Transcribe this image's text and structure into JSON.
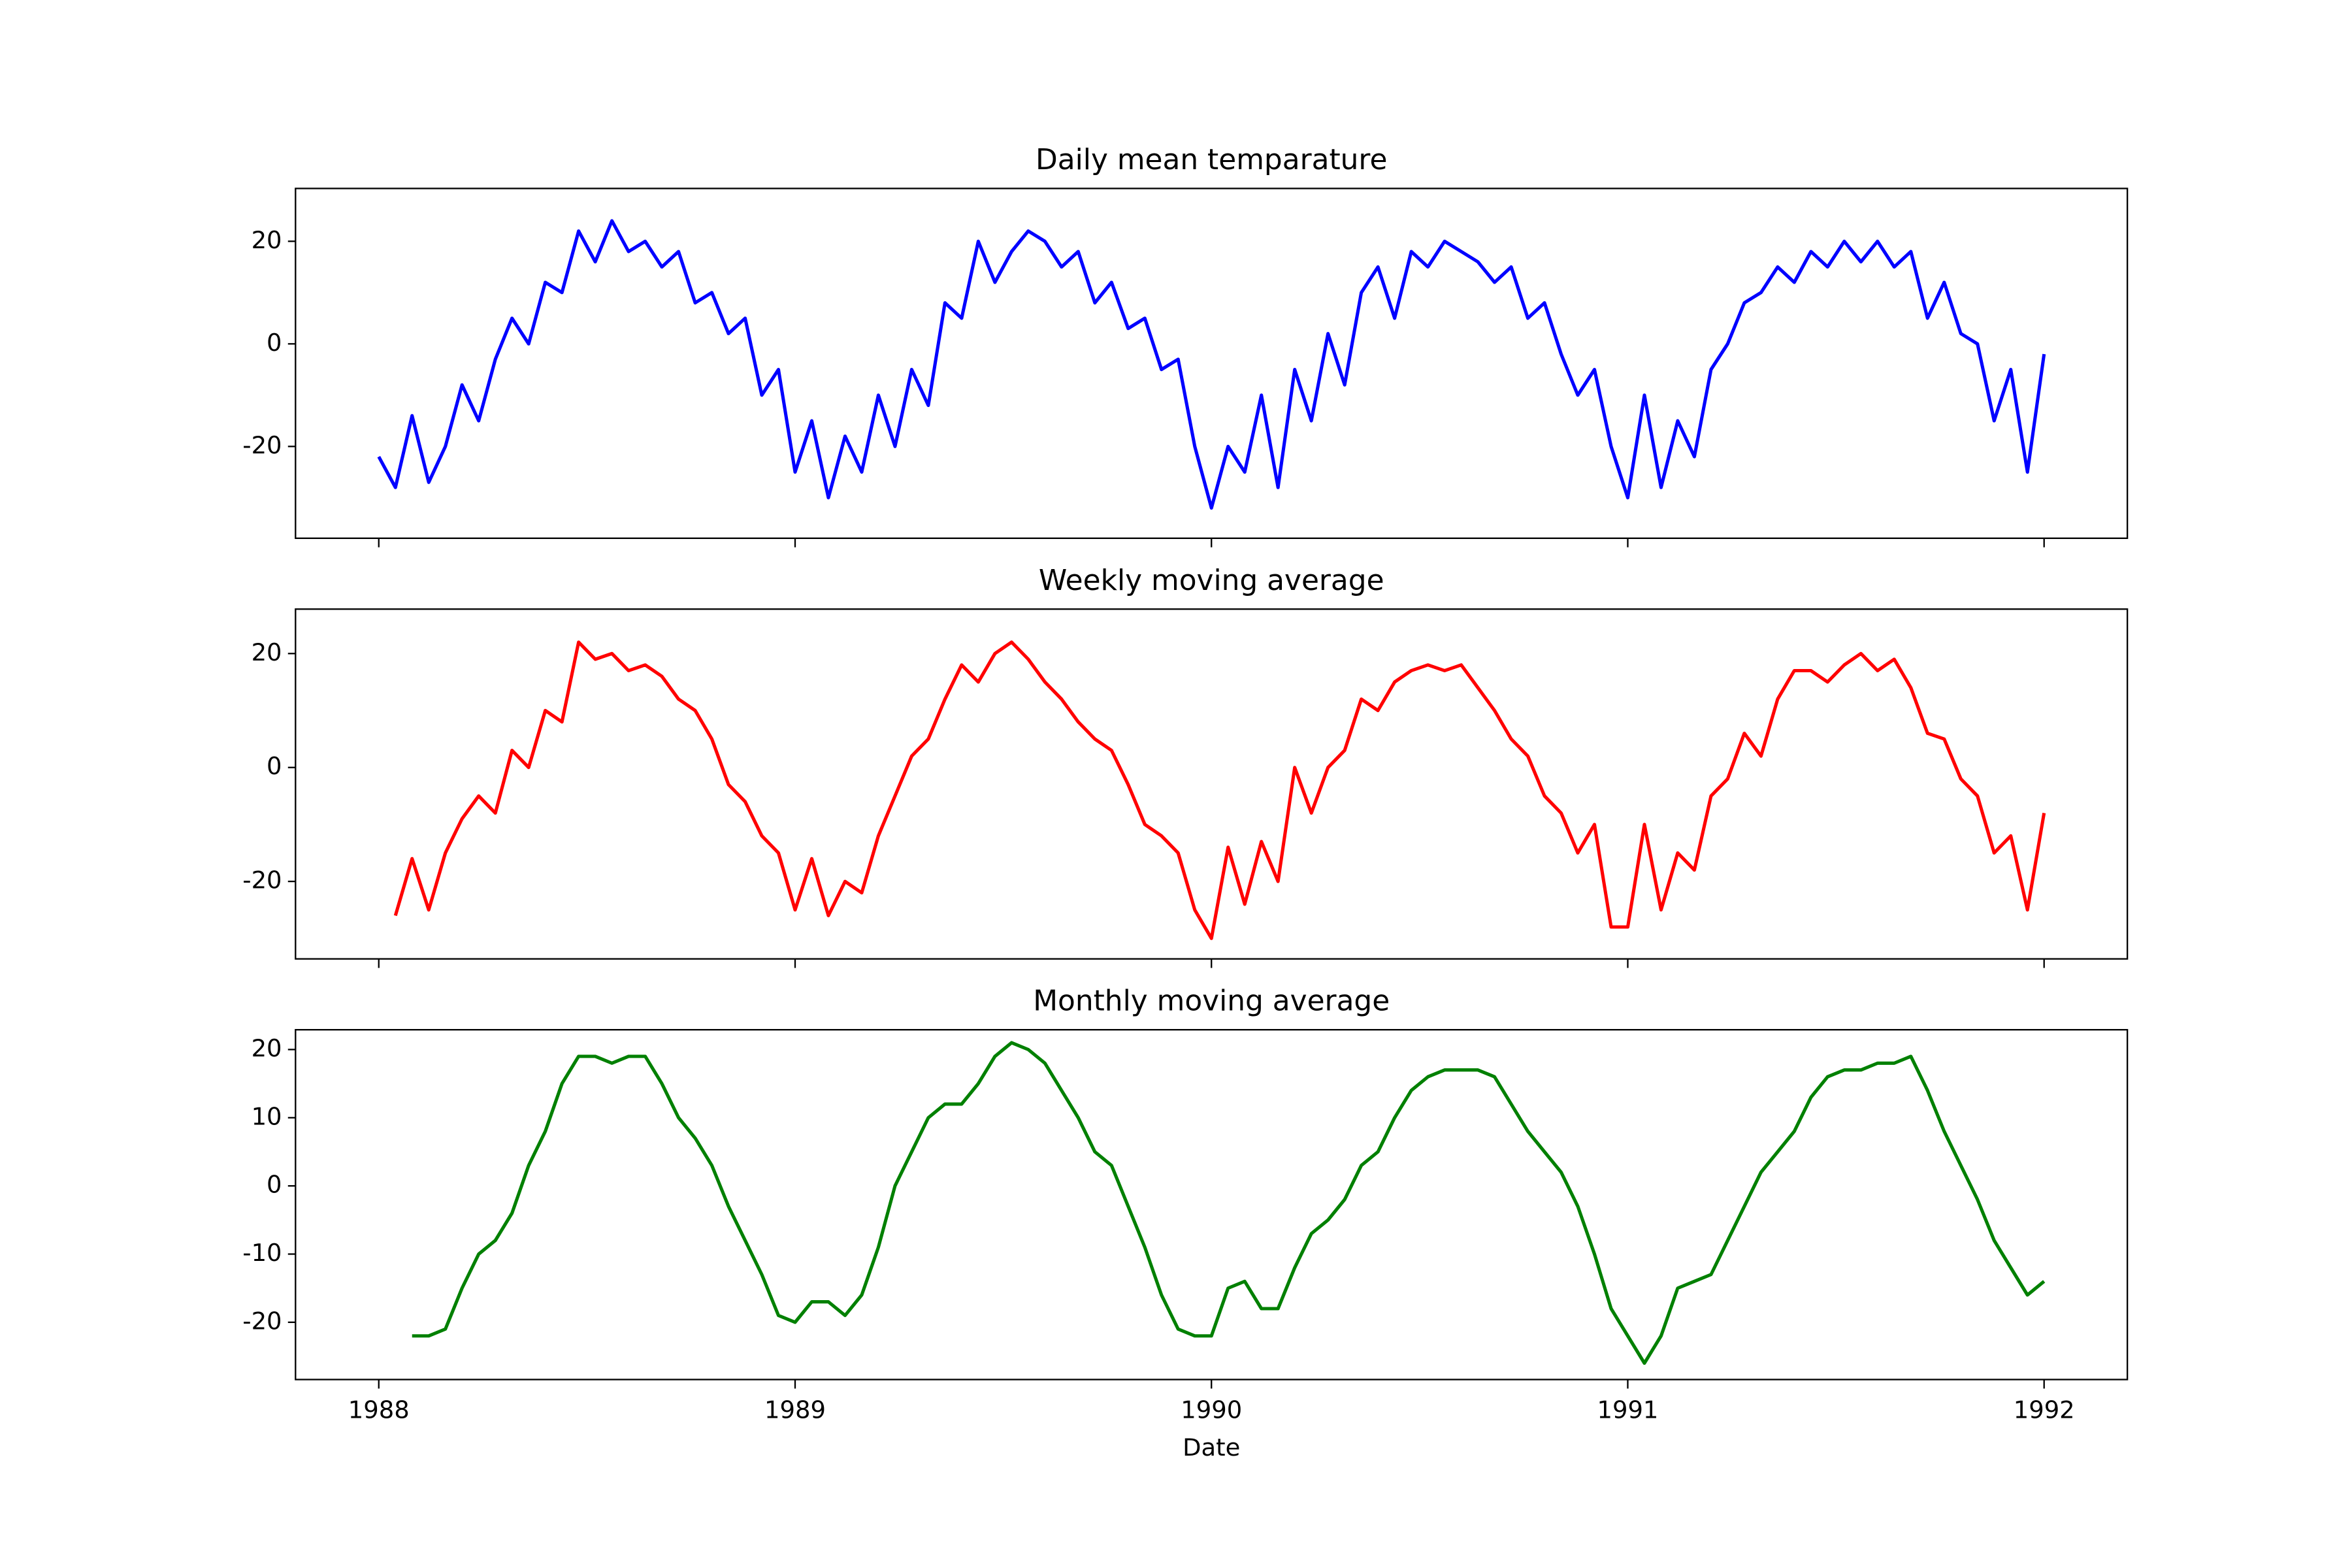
{
  "chart_data": [
    {
      "type": "line",
      "title": "Daily mean temparature",
      "color": "#0000ff",
      "x": [
        1988,
        1988.04,
        1988.08,
        1988.12,
        1988.16,
        1988.2,
        1988.24,
        1988.28,
        1988.32,
        1988.36,
        1988.4,
        1988.44,
        1988.48,
        1988.52,
        1988.56,
        1988.6,
        1988.64,
        1988.68,
        1988.72,
        1988.76,
        1988.8,
        1988.84,
        1988.88,
        1988.92,
        1988.96,
        1989,
        1989.04,
        1989.08,
        1989.12,
        1989.16,
        1989.2,
        1989.24,
        1989.28,
        1989.32,
        1989.36,
        1989.4,
        1989.44,
        1989.48,
        1989.52,
        1989.56,
        1989.6,
        1989.64,
        1989.68,
        1989.72,
        1989.76,
        1989.8,
        1989.84,
        1989.88,
        1989.92,
        1989.96,
        1990,
        1990.04,
        1990.08,
        1990.12,
        1990.16,
        1990.2,
        1990.24,
        1990.28,
        1990.32,
        1990.36,
        1990.4,
        1990.44,
        1990.48,
        1990.52,
        1990.56,
        1990.6,
        1990.64,
        1990.68,
        1990.72,
        1990.76,
        1990.8,
        1990.84,
        1990.88,
        1990.92,
        1990.96,
        1991,
        1991.04,
        1991.08,
        1991.12,
        1991.16,
        1991.2,
        1991.24,
        1991.28,
        1991.32,
        1991.36,
        1991.4,
        1991.44,
        1991.48,
        1991.52,
        1991.56,
        1991.6,
        1991.64,
        1991.68,
        1991.72,
        1991.76,
        1991.8,
        1991.84,
        1991.88,
        1991.92,
        1991.96,
        1992
      ],
      "values": [
        -22,
        -28,
        -14,
        -27,
        -20,
        -8,
        -15,
        -3,
        5,
        0,
        12,
        10,
        22,
        16,
        24,
        18,
        20,
        15,
        18,
        8,
        10,
        2,
        5,
        -10,
        -5,
        -25,
        -15,
        -30,
        -18,
        -25,
        -10,
        -20,
        -5,
        -12,
        8,
        5,
        20,
        12,
        18,
        22,
        20,
        15,
        18,
        8,
        12,
        3,
        5,
        -5,
        -3,
        -20,
        -32,
        -20,
        -25,
        -10,
        -28,
        -5,
        -15,
        2,
        -8,
        10,
        15,
        5,
        18,
        15,
        20,
        18,
        16,
        12,
        15,
        5,
        8,
        -2,
        -10,
        -5,
        -20,
        -30,
        -10,
        -28,
        -15,
        -22,
        -5,
        0,
        8,
        10,
        15,
        12,
        18,
        15,
        20,
        16,
        20,
        15,
        18,
        5,
        12,
        2,
        0,
        -15,
        -5,
        -25,
        -2
      ],
      "xlim": [
        1987.8,
        1992.2
      ],
      "xticks": [
        1988,
        1989,
        1990,
        1991,
        1992
      ],
      "show_xtick_labels": false,
      "ylim": [
        -37.9,
        30.3
      ],
      "yticks": [
        -20,
        0,
        20
      ]
    },
    {
      "type": "line",
      "title": "Weekly moving average",
      "color": "#ff0000",
      "x": [
        1988.04,
        1988.08,
        1988.12,
        1988.16,
        1988.2,
        1988.24,
        1988.28,
        1988.32,
        1988.36,
        1988.4,
        1988.44,
        1988.48,
        1988.52,
        1988.56,
        1988.6,
        1988.64,
        1988.68,
        1988.72,
        1988.76,
        1988.8,
        1988.84,
        1988.88,
        1988.92,
        1988.96,
        1989,
        1989.04,
        1989.08,
        1989.12,
        1989.16,
        1989.2,
        1989.24,
        1989.28,
        1989.32,
        1989.36,
        1989.4,
        1989.44,
        1989.48,
        1989.52,
        1989.56,
        1989.6,
        1989.64,
        1989.68,
        1989.72,
        1989.76,
        1989.8,
        1989.84,
        1989.88,
        1989.92,
        1989.96,
        1990,
        1990.04,
        1990.08,
        1990.12,
        1990.16,
        1990.2,
        1990.24,
        1990.28,
        1990.32,
        1990.36,
        1990.4,
        1990.44,
        1990.48,
        1990.52,
        1990.56,
        1990.6,
        1990.64,
        1990.68,
        1990.72,
        1990.76,
        1990.8,
        1990.84,
        1990.88,
        1990.92,
        1990.96,
        1991,
        1991.04,
        1991.08,
        1991.12,
        1991.16,
        1991.2,
        1991.24,
        1991.28,
        1991.32,
        1991.36,
        1991.4,
        1991.44,
        1991.48,
        1991.52,
        1991.56,
        1991.6,
        1991.64,
        1991.68,
        1991.72,
        1991.76,
        1991.8,
        1991.84,
        1991.88,
        1991.92,
        1991.96,
        1992
      ],
      "values": [
        -26,
        -16,
        -25,
        -15,
        -9,
        -5,
        -8,
        3,
        0,
        10,
        8,
        22,
        19,
        20,
        17,
        18,
        16,
        12,
        10,
        5,
        -3,
        -6,
        -12,
        -15,
        -25,
        -16,
        -26,
        -20,
        -22,
        -12,
        -5,
        2,
        5,
        12,
        18,
        15,
        20,
        22,
        19,
        15,
        12,
        8,
        5,
        3,
        -3,
        -10,
        -12,
        -15,
        -25,
        -30,
        -14,
        -24,
        -13,
        -20,
        0,
        -8,
        0,
        3,
        12,
        10,
        15,
        17,
        18,
        17,
        18,
        14,
        10,
        5,
        2,
        -5,
        -8,
        -15,
        -10,
        -28,
        -28,
        -10,
        -25,
        -15,
        -18,
        -5,
        -2,
        6,
        2,
        12,
        17,
        17,
        15,
        18,
        20,
        17,
        19,
        14,
        6,
        5,
        -2,
        -5,
        -15,
        -12,
        -25,
        -8
      ],
      "xlim": [
        1987.8,
        1992.2
      ],
      "xticks": [
        1988,
        1989,
        1990,
        1991,
        1992
      ],
      "show_xtick_labels": false,
      "ylim": [
        -33.6,
        27.8
      ],
      "yticks": [
        -20,
        0,
        20
      ]
    },
    {
      "type": "line",
      "title": "Monthly moving average",
      "color": "#008000",
      "xlabel": "Date",
      "x": [
        1988.08,
        1988.12,
        1988.16,
        1988.2,
        1988.24,
        1988.28,
        1988.32,
        1988.36,
        1988.4,
        1988.44,
        1988.48,
        1988.52,
        1988.56,
        1988.6,
        1988.64,
        1988.68,
        1988.72,
        1988.76,
        1988.8,
        1988.84,
        1988.88,
        1988.92,
        1988.96,
        1989,
        1989.04,
        1989.08,
        1989.12,
        1989.16,
        1989.2,
        1989.24,
        1989.28,
        1989.32,
        1989.36,
        1989.4,
        1989.44,
        1989.48,
        1989.52,
        1989.56,
        1989.6,
        1989.64,
        1989.68,
        1989.72,
        1989.76,
        1989.8,
        1989.84,
        1989.88,
        1989.92,
        1989.96,
        1990,
        1990.04,
        1990.08,
        1990.12,
        1990.16,
        1990.2,
        1990.24,
        1990.28,
        1990.32,
        1990.36,
        1990.4,
        1990.44,
        1990.48,
        1990.52,
        1990.56,
        1990.6,
        1990.64,
        1990.68,
        1990.72,
        1990.76,
        1990.8,
        1990.84,
        1990.88,
        1990.92,
        1990.96,
        1991,
        1991.04,
        1991.08,
        1991.12,
        1991.16,
        1991.2,
        1991.24,
        1991.28,
        1991.32,
        1991.36,
        1991.4,
        1991.44,
        1991.48,
        1991.52,
        1991.56,
        1991.6,
        1991.64,
        1991.68,
        1991.72,
        1991.76,
        1991.8,
        1991.84,
        1991.88,
        1991.92,
        1991.96,
        1992
      ],
      "values": [
        -22,
        -22,
        -21,
        -15,
        -10,
        -8,
        -4,
        3,
        8,
        15,
        19,
        19,
        18,
        19,
        19,
        15,
        10,
        7,
        3,
        -3,
        -8,
        -13,
        -19,
        -20,
        -17,
        -17,
        -19,
        -16,
        -9,
        0,
        5,
        10,
        12,
        12,
        15,
        19,
        21,
        20,
        18,
        14,
        10,
        5,
        3,
        -3,
        -9,
        -16,
        -21,
        -22,
        -22,
        -15,
        -14,
        -18,
        -18,
        -12,
        -7,
        -5,
        -2,
        3,
        5,
        10,
        14,
        16,
        17,
        17,
        17,
        16,
        12,
        8,
        5,
        2,
        -3,
        -10,
        -18,
        -22,
        -26,
        -22,
        -15,
        -14,
        -13,
        -8,
        -3,
        2,
        5,
        8,
        13,
        16,
        17,
        17,
        18,
        18,
        19,
        14,
        8,
        3,
        -2,
        -8,
        -12,
        -16,
        -14
      ],
      "xlim": [
        1987.8,
        1992.2
      ],
      "xticks": [
        1988,
        1989,
        1990,
        1991,
        1992
      ],
      "show_xtick_labels": true,
      "ylim": [
        -28.4,
        22.9
      ],
      "yticks": [
        -20,
        -10,
        0,
        10,
        20
      ]
    }
  ]
}
